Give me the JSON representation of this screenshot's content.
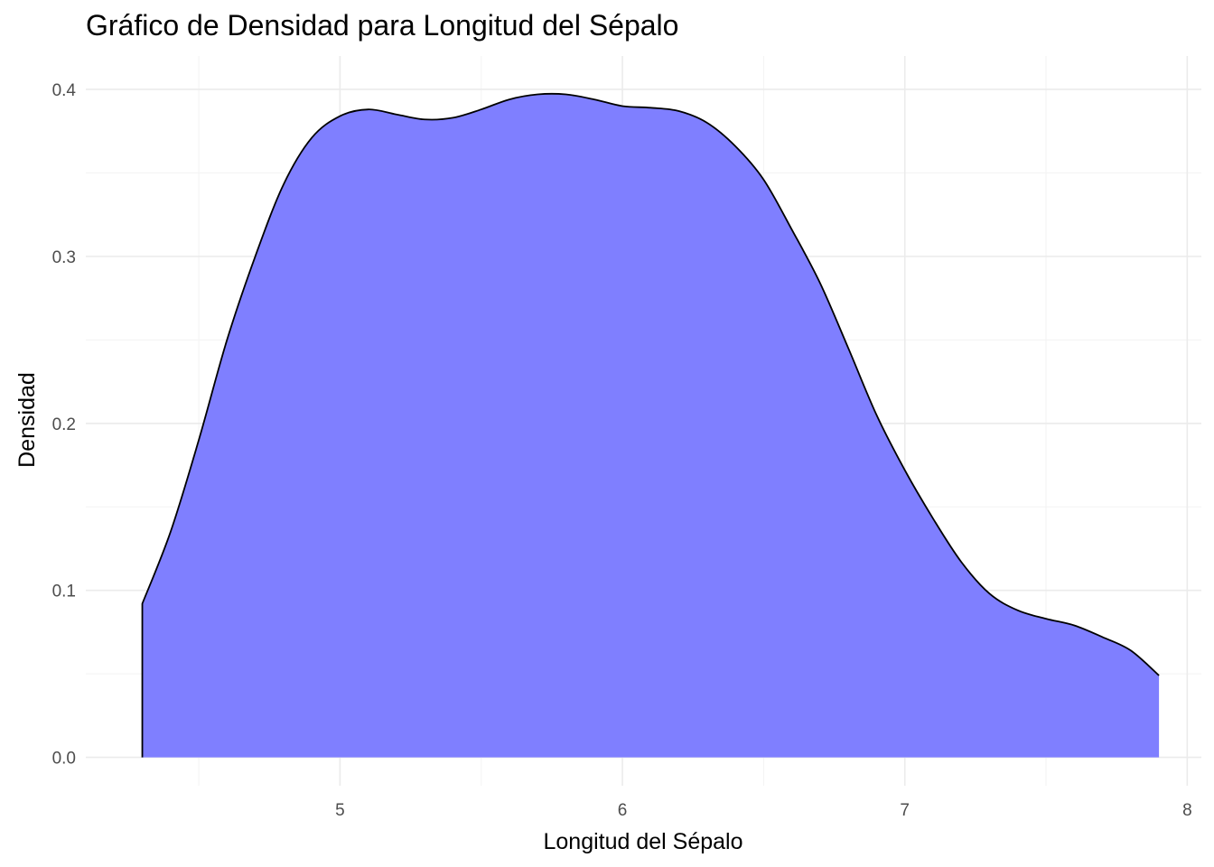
{
  "chart_data": {
    "type": "area",
    "title": "Gráfico de Densidad para Longitud del Sépalo",
    "xlabel": "Longitud del Sépalo",
    "ylabel": "Densidad",
    "xlim": [
      4.1,
      8.05
    ],
    "ylim": [
      -0.017,
      0.42
    ],
    "xticks": [
      "5",
      "6",
      "7",
      "8"
    ],
    "yticks": [
      "0.0",
      "0.1",
      "0.2",
      "0.3",
      "0.4"
    ],
    "xtick_values": [
      5,
      6,
      7,
      8
    ],
    "ytick_values": [
      0,
      0.1,
      0.2,
      0.3,
      0.4
    ],
    "x_minor": [
      4.5,
      5.5,
      6.5,
      7.5
    ],
    "y_minor": [
      0.05,
      0.15,
      0.25,
      0.35
    ],
    "grid": true,
    "fill_color": "#7f7fff",
    "line_color": "#000000",
    "series": [
      {
        "x": [
          4.3,
          4.4,
          4.5,
          4.6,
          4.7,
          4.8,
          4.9,
          5.0,
          5.1,
          5.2,
          5.3,
          5.4,
          5.5,
          5.6,
          5.7,
          5.8,
          5.9,
          6.0,
          6.1,
          6.2,
          6.3,
          6.4,
          6.5,
          6.6,
          6.7,
          6.8,
          6.9,
          7.0,
          7.1,
          7.2,
          7.3,
          7.4,
          7.5,
          7.6,
          7.7,
          7.8,
          7.9
        ],
        "y": [
          0.092,
          0.135,
          0.19,
          0.25,
          0.3,
          0.343,
          0.371,
          0.384,
          0.388,
          0.385,
          0.382,
          0.383,
          0.388,
          0.394,
          0.397,
          0.397,
          0.394,
          0.39,
          0.389,
          0.387,
          0.38,
          0.366,
          0.346,
          0.316,
          0.284,
          0.245,
          0.205,
          0.172,
          0.143,
          0.117,
          0.098,
          0.088,
          0.083,
          0.079,
          0.072,
          0.064,
          0.049
        ]
      }
    ]
  }
}
